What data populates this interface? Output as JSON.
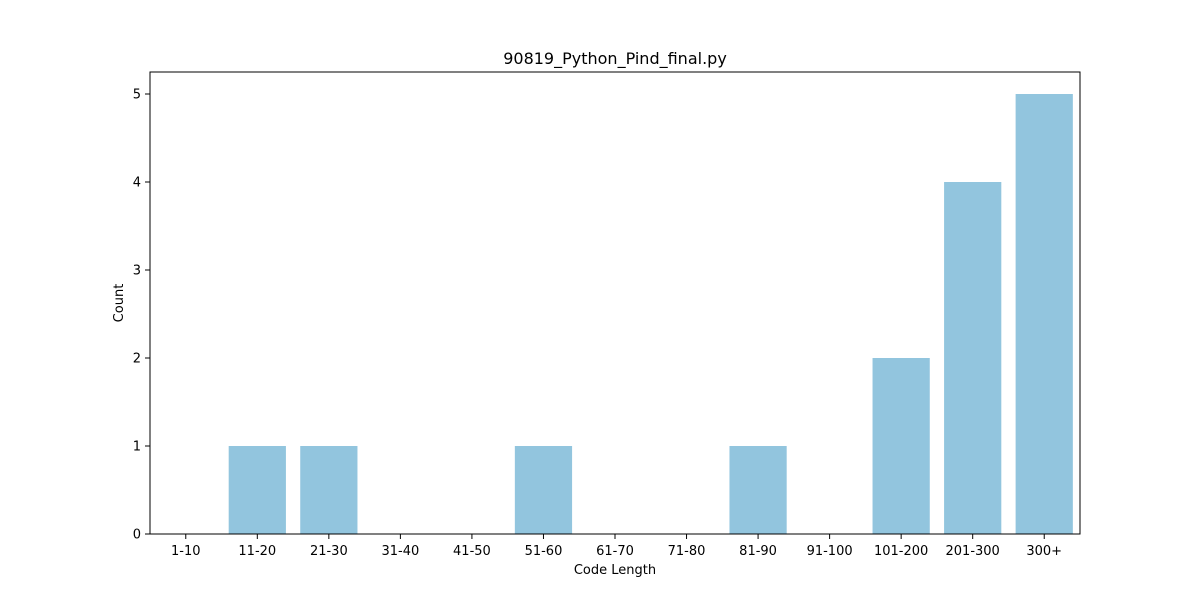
{
  "chart_data": {
    "type": "bar",
    "title": "90819_Python_Pind_final.py",
    "xlabel": "Code Length",
    "ylabel": "Count",
    "categories": [
      "1-10",
      "11-20",
      "21-30",
      "31-40",
      "41-50",
      "51-60",
      "61-70",
      "71-80",
      "81-90",
      "91-100",
      "101-200",
      "201-300",
      "300+"
    ],
    "values": [
      0,
      1,
      1,
      0,
      0,
      1,
      0,
      0,
      1,
      0,
      2,
      4,
      5
    ],
    "ylim": [
      0,
      5.25
    ],
    "yticks": [
      0,
      1,
      2,
      3,
      4,
      5
    ],
    "grid": false,
    "legend": "none",
    "bar_color": "#92c5de"
  }
}
